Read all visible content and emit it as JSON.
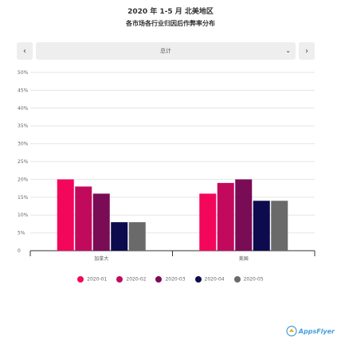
{
  "header": {
    "title": "2020 年 1-5 月 北美地区",
    "subtitle": "各市场各行业归因后作弊率分布"
  },
  "filter": {
    "prev_icon": "chevron-left-icon",
    "next_icon": "chevron-right-icon",
    "selected": "总计",
    "dropdown_icon": "chevron-down-icon"
  },
  "watermark": {
    "text": "AppsFlyer"
  },
  "colors": {
    "2020-01": "#f3075a",
    "2020-02": "#c20a5d",
    "2020-03": "#7a0b55",
    "2020-04": "#0d0b4d",
    "2020-05": "#6a6a6a"
  },
  "chart_data": {
    "type": "bar",
    "title": "2020 年 1-5 月 北美地区",
    "subtitle": "各市场各行业归因后作弊率分布",
    "categories": [
      "加拿大",
      "美国"
    ],
    "series": [
      {
        "name": "2020-01",
        "values": [
          20,
          16
        ]
      },
      {
        "name": "2020-02",
        "values": [
          18,
          19
        ]
      },
      {
        "name": "2020-03",
        "values": [
          16,
          20
        ]
      },
      {
        "name": "2020-04",
        "values": [
          8,
          14
        ]
      },
      {
        "name": "2020-05",
        "values": [
          8,
          14
        ]
      }
    ],
    "ylim": [
      0,
      50
    ],
    "yticks": [
      "0",
      "5%",
      "10%",
      "15%",
      "20%",
      "25%",
      "30%",
      "35%",
      "40%",
      "45%",
      "50%"
    ],
    "xlabel": "",
    "ylabel": "",
    "grid": true,
    "legend_position": "bottom"
  }
}
